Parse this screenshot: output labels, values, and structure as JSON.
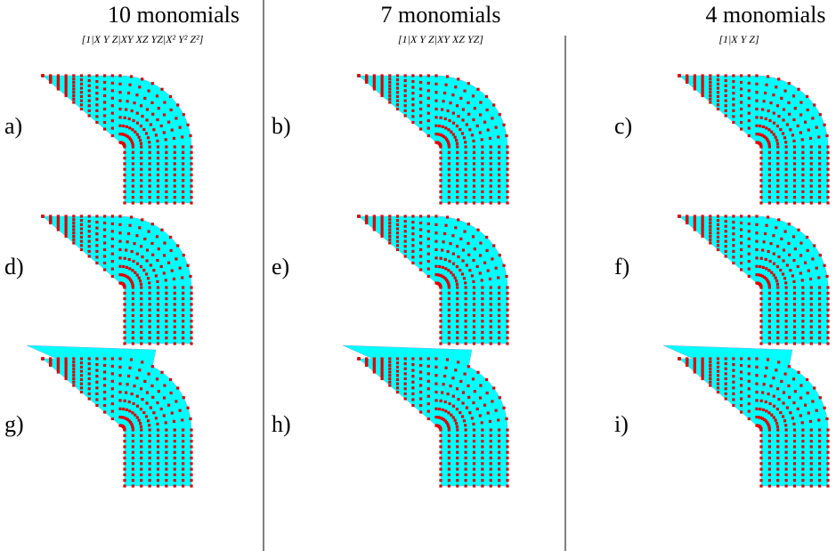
{
  "columns": [
    {
      "title": "10 monomials",
      "subtitle": "[1|X Y Z|XY XZ YZ|X² Y² Z²]"
    },
    {
      "title": "7 monomials",
      "subtitle": "[1|X Y Z|XY XZ YZ]"
    },
    {
      "title": "4 monomials",
      "subtitle": "[1|X Y Z]"
    }
  ],
  "panels": [
    {
      "label": "a)"
    },
    {
      "label": "b)"
    },
    {
      "label": "c)"
    },
    {
      "label": "d)"
    },
    {
      "label": "e)"
    },
    {
      "label": "f)"
    },
    {
      "label": "g)"
    },
    {
      "label": "h)"
    },
    {
      "label": "i)"
    }
  ]
}
